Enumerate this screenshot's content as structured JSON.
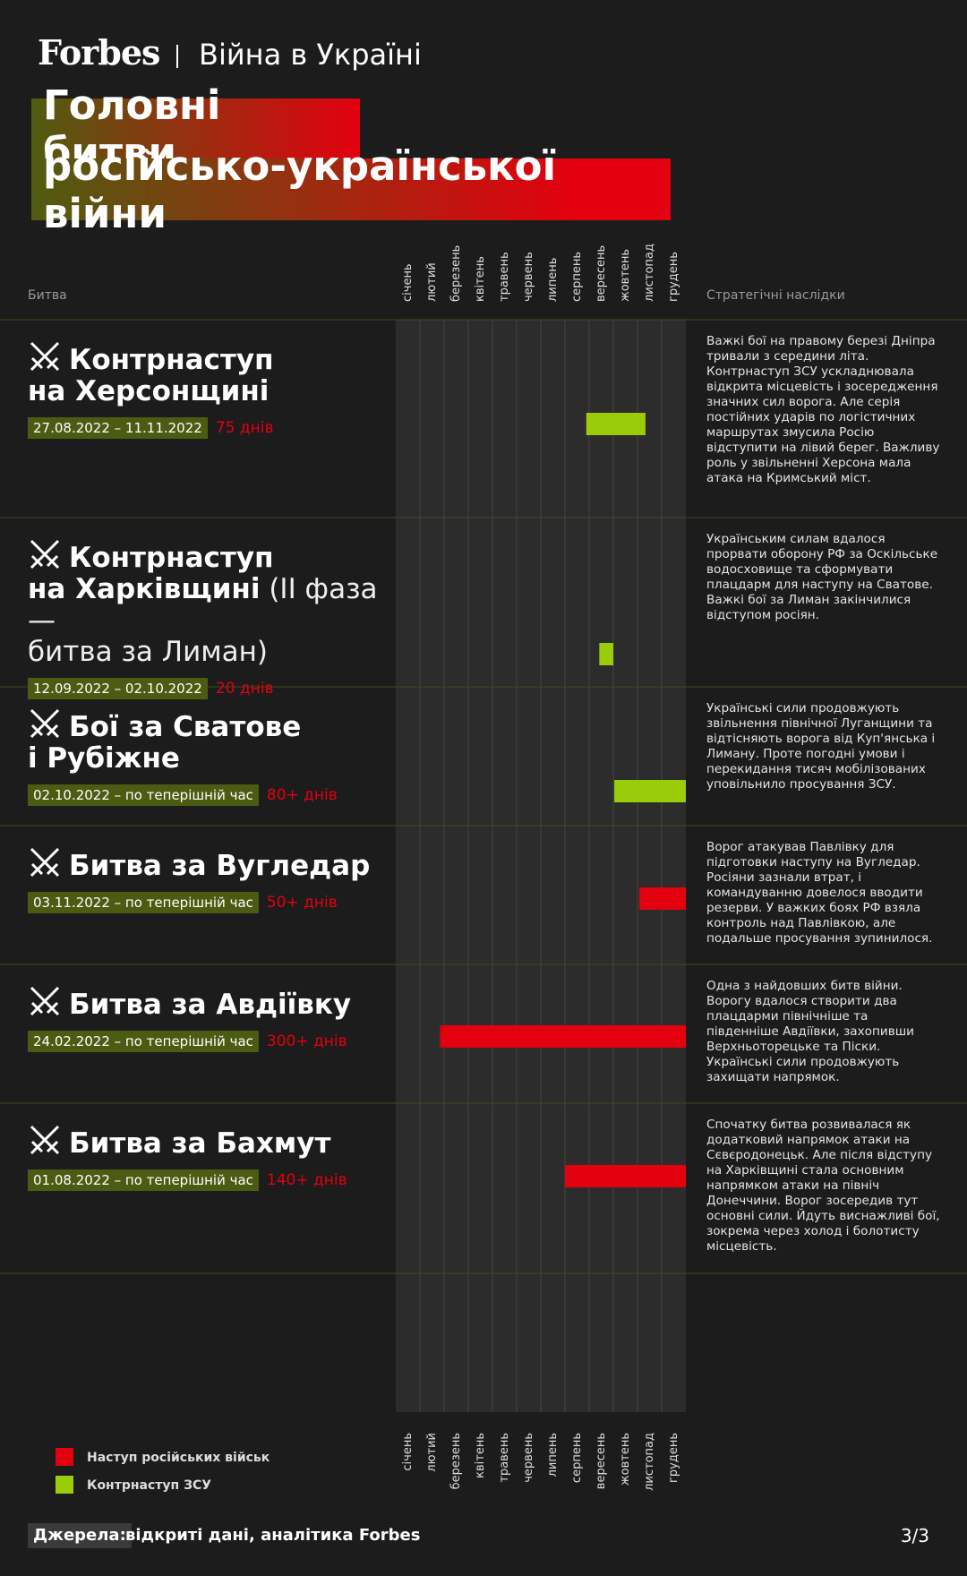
{
  "header": {
    "logo": "Forbes",
    "section": "Війна в Україні"
  },
  "title": [
    "Головні битви",
    "російсько-української війни"
  ],
  "chart_data": {
    "type": "gantt",
    "column_headers": {
      "battle": "Битва",
      "consequences": "Стратегічні наслідки"
    },
    "categories": [
      "січень",
      "лютий",
      "березень",
      "квітень",
      "травень",
      "червень",
      "липень",
      "серпень",
      "вересень",
      "жовтень",
      "листопад",
      "грудень"
    ],
    "xlim": [
      0,
      12
    ],
    "series": [
      {
        "name": "Наступ російських військ",
        "color": "#e3000f"
      },
      {
        "name": "Контрнаступ ЗСУ",
        "color": "#9bcc0a"
      }
    ],
    "rows": [
      {
        "title": "Контрнаступ\nна Херсонщині",
        "dates": "27.08.2022 – 11.11.2022",
        "duration": "75 днів",
        "start": 7.88,
        "end": 10.33,
        "color": "#9bcc0a",
        "description": "Важкі бої на правому березі Дніпра тривали з середини літа. Контрнаступ ЗСУ ускладнювала відкрита місцевість і зосередження значних сил ворога. Але серія постійних ударів по логістичних маршрутах змусила Росію відступити на лівий берег. Важливу роль у звільненні Херсона мала атака на Кримський міст."
      },
      {
        "title": "Контрнаступ\nна Харківщині",
        "subtitle": "(ІІ фаза —\nбитва за Лиман)",
        "dates": "12.09.2022 – 02.10.2022",
        "duration": "20 днів",
        "start": 8.42,
        "end": 9.0,
        "color": "#9bcc0a",
        "description": "Українським силам вдалося прорвати оборону РФ за Оскільське водосховище та сформувати плацдарм для наступу на Сватове. Важкі бої за Лиман закінчилися відступом росіян."
      },
      {
        "title": "Бої за Сватове\nі Рубіжне",
        "dates": "02.10.2022 – по теперішній час",
        "duration": "80+ днів",
        "start": 9.04,
        "end": 12,
        "color": "#9bcc0a",
        "description": "Українські сили продовжують звільнення північної Луганщини та відтісняють ворога від Куп'янська і Лиману. Проте погодні умови і перекидання тисяч мобілізованих уповільнило просування ЗСУ."
      },
      {
        "title": "Битва за Вугледар",
        "dates": "03.11.2022 – по теперішній час",
        "duration": "50+ днів",
        "start": 10.08,
        "end": 12,
        "color": "#e3000f",
        "description": "Ворог атакував Павлівку для підготовки наступу на Вугледар. Росіяни зазнали втрат, і командуванню довелося вводити резерви. У важких боях РФ взяла контроль над Павлівкою, але подальше просування зупинилося."
      },
      {
        "title": "Битва за Авдіївку",
        "dates": "24.02.2022 – по теперішній час",
        "duration": "300+ днів",
        "start": 1.83,
        "end": 12,
        "color": "#e3000f",
        "description": "Одна з найдовших битв війни. Ворогу вдалося створити два плацдарми північніше та південніше Авдіївки, захопивши Верхньоторецьке та Піски. Українські сили продовжують захищати напрямок."
      },
      {
        "title": "Битва за Бахмут",
        "dates": "01.08.2022 – по теперішній час",
        "duration": "140+ днів",
        "start": 7.0,
        "end": 12,
        "color": "#e3000f",
        "description": "Спочатку битва розвивалася як додатковий напрямок атаки на Сєвєродонецьк. Але після відступу на Харківщині стала основним напрямком атаки на північ Донеччини. Ворог зосередив тут основні сили. Йдуть виснажливі бої, зокрема через холод і болотисту місцевість."
      }
    ]
  },
  "footer": {
    "source_label": "Джерела:",
    "source": "відкриті дані, аналітика Forbes",
    "page": "3/3"
  }
}
